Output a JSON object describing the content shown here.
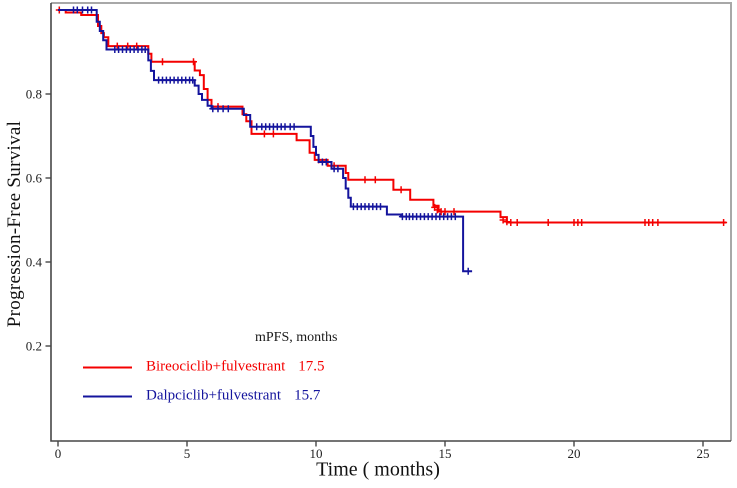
{
  "chart_data": {
    "type": "line",
    "subtype": "kaplan-meier-step",
    "title": "",
    "xlabel": "Time ( months)",
    "ylabel": "Progression-Free Survival",
    "xlim": [
      0,
      26.3
    ],
    "ylim": [
      -0.02,
      1.02
    ],
    "x_ticks": [
      0,
      5,
      10,
      15,
      20,
      25
    ],
    "y_ticks": [
      0.2,
      0.4,
      0.6,
      0.8
    ],
    "grid": false,
    "frame_color": "#a8a8a8",
    "axis_color": "#474747",
    "legend": {
      "title": "mPFS, months",
      "position": "inside-bottom-left",
      "entries": [
        {
          "label": "Bireociclib+fulvestrant",
          "mpfs": "17.5",
          "color": "#f40000"
        },
        {
          "label": "Dalpciclib+fulvestrant",
          "mpfs": "15.7",
          "color": "#14149d"
        }
      ]
    },
    "series": [
      {
        "name": "Bireociclib+fulvestrant",
        "color": "#f40000",
        "median_pfs_months": 17.5,
        "end_time": 25.9,
        "points": [
          [
            0,
            1.0
          ],
          [
            0.3,
            0.994
          ],
          [
            0.9,
            0.988
          ],
          [
            1.55,
            0.962
          ],
          [
            1.68,
            0.945
          ],
          [
            1.78,
            0.935
          ],
          [
            1.95,
            0.914
          ],
          [
            3.5,
            0.896
          ],
          [
            3.62,
            0.877
          ],
          [
            5.3,
            0.856
          ],
          [
            5.5,
            0.845
          ],
          [
            5.65,
            0.812
          ],
          [
            5.8,
            0.786
          ],
          [
            5.95,
            0.77
          ],
          [
            7.15,
            0.752
          ],
          [
            7.3,
            0.735
          ],
          [
            7.5,
            0.705
          ],
          [
            9.25,
            0.69
          ],
          [
            9.75,
            0.66
          ],
          [
            9.95,
            0.643
          ],
          [
            10.45,
            0.629
          ],
          [
            11.15,
            0.612
          ],
          [
            11.25,
            0.596
          ],
          [
            13.0,
            0.572
          ],
          [
            13.65,
            0.548
          ],
          [
            14.55,
            0.534
          ],
          [
            14.75,
            0.52
          ],
          [
            17.15,
            0.507
          ],
          [
            17.4,
            0.494
          ]
        ],
        "censor_marks": [
          [
            0.05,
            1.0
          ],
          [
            2.3,
            0.914
          ],
          [
            2.7,
            0.914
          ],
          [
            3.05,
            0.914
          ],
          [
            4.05,
            0.877
          ],
          [
            5.25,
            0.877
          ],
          [
            6.2,
            0.77
          ],
          [
            8.0,
            0.705
          ],
          [
            8.35,
            0.705
          ],
          [
            10.1,
            0.643
          ],
          [
            10.7,
            0.629
          ],
          [
            11.9,
            0.596
          ],
          [
            12.3,
            0.596
          ],
          [
            13.3,
            0.572
          ],
          [
            14.6,
            0.53
          ],
          [
            14.7,
            0.524
          ],
          [
            14.85,
            0.52
          ],
          [
            15.0,
            0.52
          ],
          [
            15.35,
            0.52
          ],
          [
            17.25,
            0.5
          ],
          [
            17.4,
            0.496
          ],
          [
            17.55,
            0.494
          ],
          [
            17.8,
            0.494
          ],
          [
            19.0,
            0.494
          ],
          [
            20.0,
            0.494
          ],
          [
            20.15,
            0.494
          ],
          [
            20.3,
            0.494
          ],
          [
            22.75,
            0.494
          ],
          [
            22.9,
            0.494
          ],
          [
            23.05,
            0.494
          ],
          [
            23.25,
            0.494
          ],
          [
            25.8,
            0.494
          ]
        ]
      },
      {
        "name": "Dalpciclib+fulvestrant",
        "color": "#14149d",
        "median_pfs_months": 15.7,
        "end_time": 16.05,
        "points": [
          [
            0,
            1.0
          ],
          [
            1.5,
            0.972
          ],
          [
            1.62,
            0.95
          ],
          [
            1.75,
            0.928
          ],
          [
            1.88,
            0.906
          ],
          [
            3.5,
            0.88
          ],
          [
            3.6,
            0.855
          ],
          [
            3.72,
            0.833
          ],
          [
            5.3,
            0.82
          ],
          [
            5.45,
            0.8
          ],
          [
            5.58,
            0.786
          ],
          [
            5.8,
            0.772
          ],
          [
            5.95,
            0.765
          ],
          [
            7.2,
            0.75
          ],
          [
            7.45,
            0.722
          ],
          [
            9.8,
            0.7
          ],
          [
            9.9,
            0.674
          ],
          [
            10.0,
            0.655
          ],
          [
            10.1,
            0.638
          ],
          [
            10.6,
            0.622
          ],
          [
            11.05,
            0.6
          ],
          [
            11.15,
            0.575
          ],
          [
            11.25,
            0.553
          ],
          [
            11.35,
            0.532
          ],
          [
            12.75,
            0.513
          ],
          [
            13.3,
            0.508
          ],
          [
            15.7,
            0.378
          ]
        ],
        "censor_marks": [
          [
            0.6,
            1.0
          ],
          [
            0.75,
            1.0
          ],
          [
            0.95,
            1.0
          ],
          [
            1.15,
            1.0
          ],
          [
            1.3,
            1.0
          ],
          [
            2.2,
            0.906
          ],
          [
            2.35,
            0.906
          ],
          [
            2.5,
            0.906
          ],
          [
            2.65,
            0.906
          ],
          [
            2.8,
            0.906
          ],
          [
            2.95,
            0.906
          ],
          [
            3.1,
            0.906
          ],
          [
            3.25,
            0.906
          ],
          [
            3.38,
            0.906
          ],
          [
            3.9,
            0.833
          ],
          [
            4.05,
            0.833
          ],
          [
            4.2,
            0.833
          ],
          [
            4.35,
            0.833
          ],
          [
            4.5,
            0.833
          ],
          [
            4.65,
            0.833
          ],
          [
            4.8,
            0.833
          ],
          [
            4.95,
            0.833
          ],
          [
            5.1,
            0.833
          ],
          [
            5.22,
            0.833
          ],
          [
            6.0,
            0.765
          ],
          [
            6.2,
            0.765
          ],
          [
            6.4,
            0.765
          ],
          [
            6.6,
            0.765
          ],
          [
            7.7,
            0.722
          ],
          [
            7.9,
            0.722
          ],
          [
            8.05,
            0.722
          ],
          [
            8.2,
            0.722
          ],
          [
            8.35,
            0.722
          ],
          [
            8.5,
            0.722
          ],
          [
            8.65,
            0.722
          ],
          [
            8.8,
            0.722
          ],
          [
            9.0,
            0.722
          ],
          [
            9.15,
            0.722
          ],
          [
            10.25,
            0.638
          ],
          [
            10.4,
            0.638
          ],
          [
            10.7,
            0.622
          ],
          [
            10.85,
            0.622
          ],
          [
            11.45,
            0.532
          ],
          [
            11.6,
            0.532
          ],
          [
            11.75,
            0.532
          ],
          [
            11.9,
            0.532
          ],
          [
            12.05,
            0.532
          ],
          [
            12.2,
            0.532
          ],
          [
            12.35,
            0.532
          ],
          [
            12.5,
            0.532
          ],
          [
            13.35,
            0.508
          ],
          [
            13.5,
            0.508
          ],
          [
            13.62,
            0.508
          ],
          [
            13.75,
            0.508
          ],
          [
            13.9,
            0.508
          ],
          [
            14.05,
            0.508
          ],
          [
            14.2,
            0.508
          ],
          [
            14.35,
            0.508
          ],
          [
            14.5,
            0.508
          ],
          [
            14.65,
            0.508
          ],
          [
            14.8,
            0.508
          ],
          [
            14.95,
            0.508
          ],
          [
            15.1,
            0.508
          ],
          [
            15.25,
            0.508
          ],
          [
            15.4,
            0.508
          ],
          [
            15.9,
            0.378
          ]
        ]
      }
    ]
  }
}
